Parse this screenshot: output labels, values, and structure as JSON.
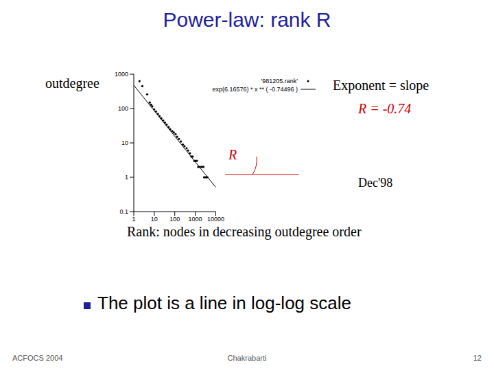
{
  "chart_data": {
    "type": "scatter",
    "x_label": "Rank: nodes in decreasing outdegree order",
    "y_label": "outdegree",
    "series": [
      {
        "name": "'981205.rank'",
        "type": "scatter",
        "color": "#000000",
        "marker": "dot",
        "x": [
          1.9,
          2.6,
          4.5,
          6,
          7,
          8,
          10,
          12,
          15,
          18,
          22,
          27,
          33,
          40,
          50,
          60,
          75,
          90,
          110,
          130,
          160,
          200,
          250,
          300,
          380,
          450,
          550,
          650,
          750,
          900,
          1050,
          1200,
          1400,
          1700,
          2100,
          2500,
          2700,
          3100,
          3500,
          3900
        ],
        "values": [
          630,
          450,
          260,
          150,
          130,
          115,
          95,
          82,
          70,
          60,
          52,
          45,
          39,
          34,
          29,
          25,
          22,
          20,
          18,
          15,
          13,
          11,
          9,
          8,
          7,
          6,
          5,
          4,
          4,
          3,
          3,
          3,
          2,
          2,
          2,
          2,
          1,
          1,
          1,
          1
        ]
      },
      {
        "name": "exp(6.16576) * x ** ( -0.74496 )",
        "type": "line",
        "color": "#000000",
        "line_style": "solid",
        "x": [
          1,
          10000
        ],
        "values": [
          476,
          0.51
        ]
      }
    ],
    "xlim": [
      1,
      10000
    ],
    "ylim": [
      0.1,
      1000
    ],
    "xticks": [
      1,
      10,
      100,
      1000,
      10000
    ],
    "yticks": [
      0.1,
      1,
      10,
      100,
      1000
    ],
    "log": true,
    "legend": "upper right",
    "annotations": [
      "R",
      "Exponent = slope",
      "R = -0.74",
      "Dec'98"
    ]
  },
  "slide": {
    "title": "Power-law: rank R",
    "bullet": "The plot is a line in log-log scale",
    "footer": {
      "left": "ACFOCS 2004",
      "center": "Chakrabarti",
      "right": "12"
    }
  }
}
